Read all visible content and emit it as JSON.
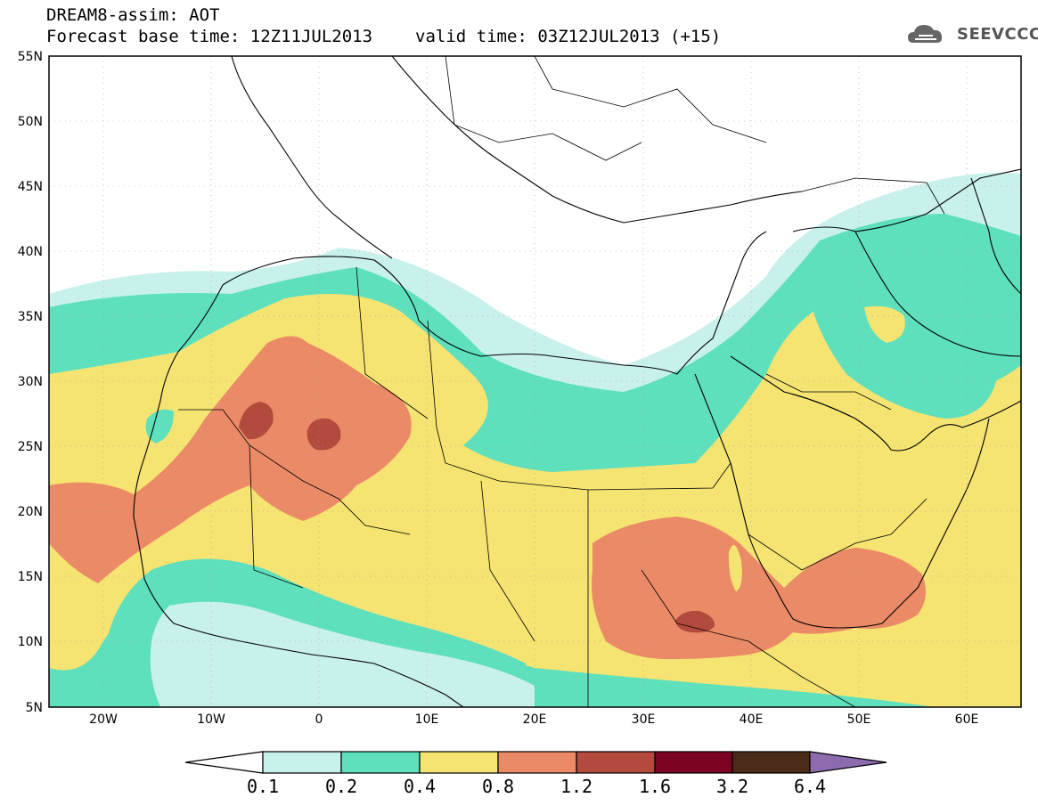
{
  "header": {
    "title": "DREAM8-assim: AOT",
    "base_label": "Forecast base time: 12Z11JUL2013",
    "valid_label": "valid time: 03Z12JUL2013 (+15)"
  },
  "logo": {
    "text": "SEEVCCC",
    "icon": "cloud-icon"
  },
  "axes": {
    "lat_labels": [
      "55N",
      "50N",
      "45N",
      "40N",
      "35N",
      "30N",
      "25N",
      "20N",
      "15N",
      "10N",
      "5N"
    ],
    "lon_labels": [
      "20W",
      "10W",
      "0",
      "10E",
      "20E",
      "30E",
      "40E",
      "50E",
      "60E"
    ]
  },
  "legend": {
    "colors": [
      "#c9f1eb",
      "#5fe0bd",
      "#f5e372",
      "#ea8a66",
      "#b24a3e",
      "#7c0222",
      "#4a2a18"
    ],
    "under_color": "#ffffff",
    "over_color": "#8e6aae",
    "labels": [
      "0.1",
      "0.2",
      "0.4",
      "0.8",
      "1.2",
      "1.6",
      "3.2",
      "6.4"
    ]
  }
}
